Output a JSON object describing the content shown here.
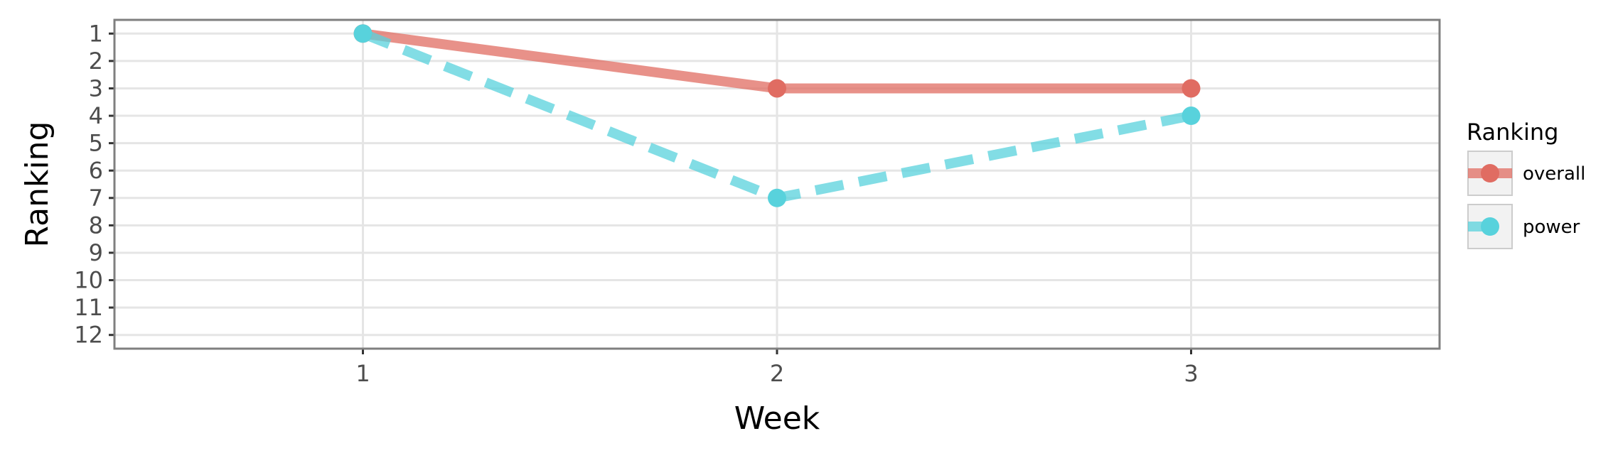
{
  "chart_data": {
    "type": "line",
    "title": "",
    "xlabel": "Week",
    "ylabel": "Ranking",
    "x": [
      1,
      2,
      3
    ],
    "x_tick_labels": [
      "1",
      "2",
      "3"
    ],
    "xlim": [
      0.4,
      3.6
    ],
    "y_tick_labels": [
      "1",
      "2",
      "3",
      "4",
      "5",
      "6",
      "7",
      "8",
      "9",
      "10",
      "11",
      "12"
    ],
    "ylim": [
      12.5,
      0.5
    ],
    "y_reversed": true,
    "grid": true,
    "legend_title": "Ranking",
    "legend_position": "right",
    "series": [
      {
        "name": "overall",
        "values": [
          1,
          3,
          3
        ],
        "color": "#e06c62",
        "line_style": "solid"
      },
      {
        "name": "power",
        "values": [
          1,
          7,
          4
        ],
        "color": "#58d2dc",
        "line_style": "dashed"
      }
    ]
  }
}
